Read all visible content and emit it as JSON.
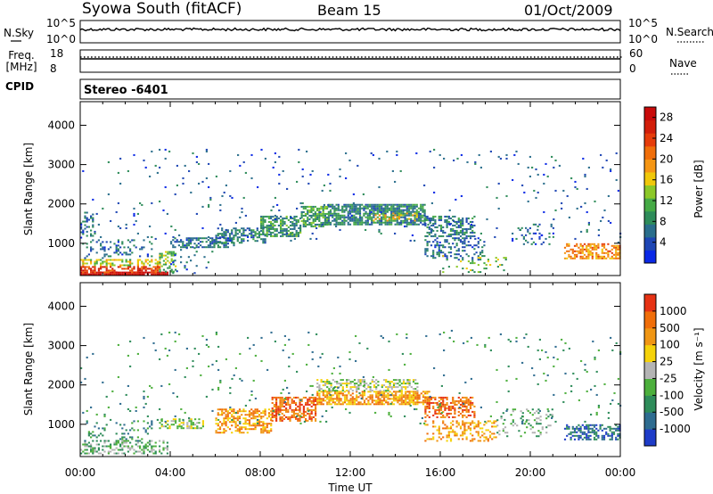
{
  "header": {
    "station": "Syowa South (fitACF)",
    "beam": "Beam 15",
    "date": "01/Oct/2009"
  },
  "status_panels": {
    "nsky_label": "N.Sky",
    "nsky_ticks": [
      "10^5",
      "10^0"
    ],
    "nsearch_label": "N.Search",
    "nsearch_ticks": [
      "10^5",
      "10^0"
    ],
    "freq_label": "Freq.",
    "freq_unit": "[MHz]",
    "freq_ticks": [
      "18",
      "8"
    ],
    "nave_label": "Nave",
    "nave_ticks": [
      "60",
      "0"
    ],
    "cpid_label": "CPID",
    "cpid_value": "Stereo -6401"
  },
  "chart_data": [
    {
      "type": "heatmap",
      "name": "power",
      "xlabel": "Time UT",
      "ylabel": "Slant Range [km]",
      "x_ticks": [
        "00:00",
        "04:00",
        "08:00",
        "12:00",
        "16:00",
        "20:00",
        "00:00"
      ],
      "xlim_hours": [
        0,
        24
      ],
      "y_ticks": [
        "1000",
        "2000",
        "3000",
        "4000"
      ],
      "ylim_km": [
        180,
        4600
      ],
      "colorbar": {
        "label": "Power [dB]",
        "ticks": [
          "4",
          "8",
          "12",
          "16",
          "20",
          "24",
          "28"
        ],
        "range": [
          0,
          30
        ],
        "colors": [
          "#0a28e6",
          "#1e46b4",
          "#2a6e8c",
          "#2e8c5a",
          "#46aa46",
          "#8cc828",
          "#f0c80a",
          "#f59614",
          "#f06e0a",
          "#e63c0a",
          "#d21e0a",
          "#c80a0a"
        ]
      },
      "regions": [
        {
          "t0": 0.0,
          "t1": 3.9,
          "r0": 200,
          "r1": 280,
          "v": 29,
          "d": 0.95
        },
        {
          "t0": 0.0,
          "t1": 3.5,
          "r0": 280,
          "r1": 420,
          "v": 24,
          "d": 0.55
        },
        {
          "t0": 0.0,
          "t1": 3.5,
          "r0": 420,
          "r1": 600,
          "v": 15,
          "d": 0.45
        },
        {
          "t0": 0.0,
          "t1": 3.2,
          "r0": 600,
          "r1": 1100,
          "v": 6,
          "d": 0.18
        },
        {
          "t0": 0.0,
          "t1": 0.6,
          "r0": 1100,
          "r1": 1800,
          "v": 6,
          "d": 0.25
        },
        {
          "t0": 3.5,
          "t1": 4.2,
          "r0": 300,
          "r1": 800,
          "v": 12,
          "d": 0.4
        },
        {
          "t0": 4.0,
          "t1": 6.8,
          "r0": 900,
          "r1": 1150,
          "v": 6,
          "d": 0.55
        },
        {
          "t0": 4.0,
          "t1": 6.0,
          "r0": 250,
          "r1": 900,
          "v": 5,
          "d": 0.08
        },
        {
          "t0": 6.0,
          "t1": 8.2,
          "r0": 1000,
          "r1": 1400,
          "v": 7,
          "d": 0.55
        },
        {
          "t0": 8.0,
          "t1": 9.8,
          "r0": 1200,
          "r1": 1700,
          "v": 9,
          "d": 0.6
        },
        {
          "t0": 9.8,
          "t1": 11.0,
          "r0": 1450,
          "r1": 1950,
          "v": 10,
          "d": 0.7
        },
        {
          "t0": 11.0,
          "t1": 15.3,
          "r0": 1500,
          "r1": 2000,
          "v": 8,
          "d": 0.75
        },
        {
          "t0": 13.0,
          "t1": 15.0,
          "r0": 1580,
          "r1": 1780,
          "v": 16,
          "d": 0.3
        },
        {
          "t0": 15.3,
          "t1": 17.5,
          "r0": 1200,
          "r1": 1700,
          "v": 7,
          "d": 0.5
        },
        {
          "t0": 15.3,
          "t1": 18.0,
          "r0": 600,
          "r1": 1150,
          "v": 6,
          "d": 0.3
        },
        {
          "t0": 16.0,
          "t1": 19.0,
          "r0": 250,
          "r1": 700,
          "v": 12,
          "d": 0.12
        },
        {
          "t0": 19.5,
          "t1": 21.0,
          "r0": 1000,
          "r1": 1500,
          "v": 5,
          "d": 0.15
        },
        {
          "t0": 21.5,
          "t1": 24.0,
          "r0": 600,
          "r1": 1000,
          "v": 20,
          "d": 0.55
        },
        {
          "t0": 0.0,
          "t1": 24.0,
          "r0": 1000,
          "r1": 3400,
          "v": 5,
          "d": 0.02
        }
      ]
    },
    {
      "type": "heatmap",
      "name": "velocity",
      "xlabel": "Time UT",
      "ylabel": "Slant Range [km]",
      "x_ticks": [
        "00:00",
        "04:00",
        "08:00",
        "12:00",
        "16:00",
        "20:00",
        "00:00"
      ],
      "xlim_hours": [
        0,
        24
      ],
      "y_ticks": [
        "1000",
        "2000",
        "3000",
        "4000"
      ],
      "ylim_km": [
        180,
        4600
      ],
      "colorbar": {
        "label": "Velocity [m s⁻¹]",
        "ticks": [
          "1000",
          "500",
          "100",
          "25",
          "-25",
          "-100",
          "-500",
          "-1000"
        ],
        "colors": [
          "#1e3cc8",
          "#2e6c90",
          "#2e8c5a",
          "#4caf3c",
          "#b4b4b4",
          "#f5d20a",
          "#f09614",
          "#f06e0a",
          "#e63214"
        ]
      },
      "regions": [
        {
          "t0": 0.0,
          "t1": 3.9,
          "r0": 250,
          "r1": 600,
          "v": 3,
          "d": 0.4
        },
        {
          "t0": 0.0,
          "t1": 3.2,
          "r0": 600,
          "r1": 1100,
          "v": 2,
          "d": 0.15
        },
        {
          "t0": 3.5,
          "t1": 5.5,
          "r0": 900,
          "r1": 1150,
          "v": 4,
          "d": 0.5
        },
        {
          "t0": 6.0,
          "t1": 8.5,
          "r0": 800,
          "r1": 1400,
          "v": 6,
          "d": 0.55
        },
        {
          "t0": 8.5,
          "t1": 10.5,
          "r0": 1100,
          "r1": 1700,
          "v": 7,
          "d": 0.6
        },
        {
          "t0": 10.5,
          "t1": 15.5,
          "r0": 1500,
          "r1": 1850,
          "v": 6,
          "d": 0.7
        },
        {
          "t0": 10.5,
          "t1": 15.0,
          "r0": 1850,
          "r1": 2150,
          "v": 4,
          "d": 0.5
        },
        {
          "t0": 15.3,
          "t1": 17.5,
          "r0": 1200,
          "r1": 1700,
          "v": 7,
          "d": 0.5
        },
        {
          "t0": 15.3,
          "t1": 18.5,
          "r0": 600,
          "r1": 1100,
          "v": 6,
          "d": 0.3
        },
        {
          "t0": 18.5,
          "t1": 21.0,
          "r0": 700,
          "r1": 1400,
          "v": 3,
          "d": 0.15
        },
        {
          "t0": 21.5,
          "t1": 24.0,
          "r0": 600,
          "r1": 1000,
          "v": 1,
          "d": 0.55
        },
        {
          "t0": 0.0,
          "t1": 24.0,
          "r0": 1000,
          "r1": 3400,
          "v": 2,
          "d": 0.02
        }
      ]
    }
  ]
}
